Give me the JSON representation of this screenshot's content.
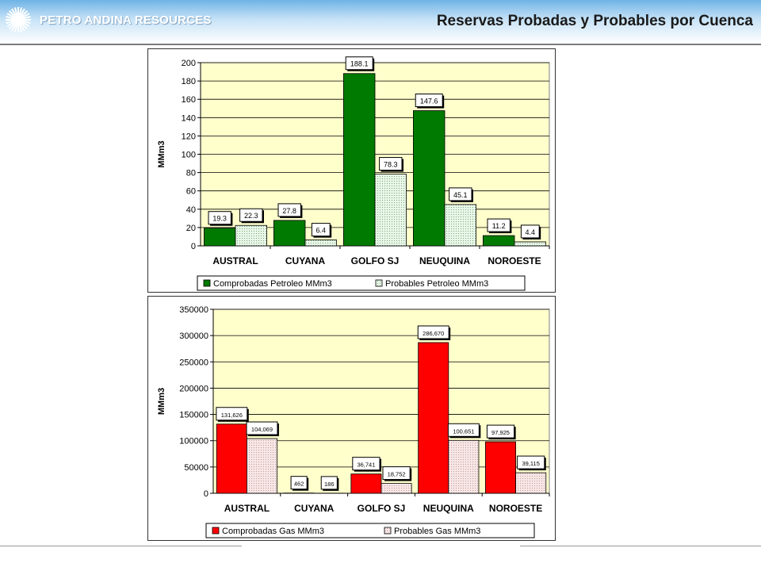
{
  "header": {
    "company": "PETRO ANDINA RESOURCES",
    "title": "Reservas Probadas y Probables por Cuenca"
  },
  "colors": {
    "plot_background": "#ffffcc",
    "oil_proven": "#007a00",
    "oil_probable": "#e9f6e9",
    "gas_proven": "#ff0000",
    "gas_probable": "#f7e6e6"
  },
  "chart_data": [
    {
      "type": "bar",
      "categories": [
        "AUSTRAL",
        "CUYANA",
        "GOLFO SJ",
        "NEUQUINA",
        "NOROESTE"
      ],
      "series": [
        {
          "name": "Comprobadas Petroleo MMm3",
          "values": [
            19.3,
            27.8,
            188.1,
            147.6,
            11.2
          ],
          "labels": [
            "19.3",
            "27.8",
            "188.1",
            "147.6",
            "11.2"
          ]
        },
        {
          "name": "Probables Petroleo MMm3",
          "values": [
            22.3,
            6.4,
            78.3,
            45.1,
            4.4
          ],
          "labels": [
            "22.3",
            "6.4",
            "78.3",
            "45.1",
            "4.4"
          ]
        }
      ],
      "ylabel": "MMm3",
      "ylim": [
        0,
        200
      ],
      "yticks": [
        0,
        20,
        40,
        60,
        80,
        100,
        120,
        140,
        160,
        180,
        200
      ],
      "grid": true,
      "legend": "bottom"
    },
    {
      "type": "bar",
      "categories": [
        "AUSTRAL",
        "CUYANA",
        "GOLFO SJ",
        "NEUQUINA",
        "NOROESTE"
      ],
      "series": [
        {
          "name": "Comprobadas Gas MMm3",
          "values": [
            131626,
            462,
            36741,
            286670,
            97925
          ],
          "labels": [
            "131,626",
            "462",
            "36,741",
            "286,670",
            "97,925"
          ]
        },
        {
          "name": "Probables Gas MMm3",
          "values": [
            104069,
            186,
            18752,
            100651,
            39115
          ],
          "labels": [
            "104,069",
            "186",
            "18,752",
            "100,651",
            "39,115"
          ]
        }
      ],
      "ylabel": "MMm3",
      "ylim": [
        0,
        350000
      ],
      "yticks": [
        0,
        50000,
        100000,
        150000,
        200000,
        250000,
        300000,
        350000
      ],
      "grid": true,
      "legend": "bottom"
    }
  ]
}
